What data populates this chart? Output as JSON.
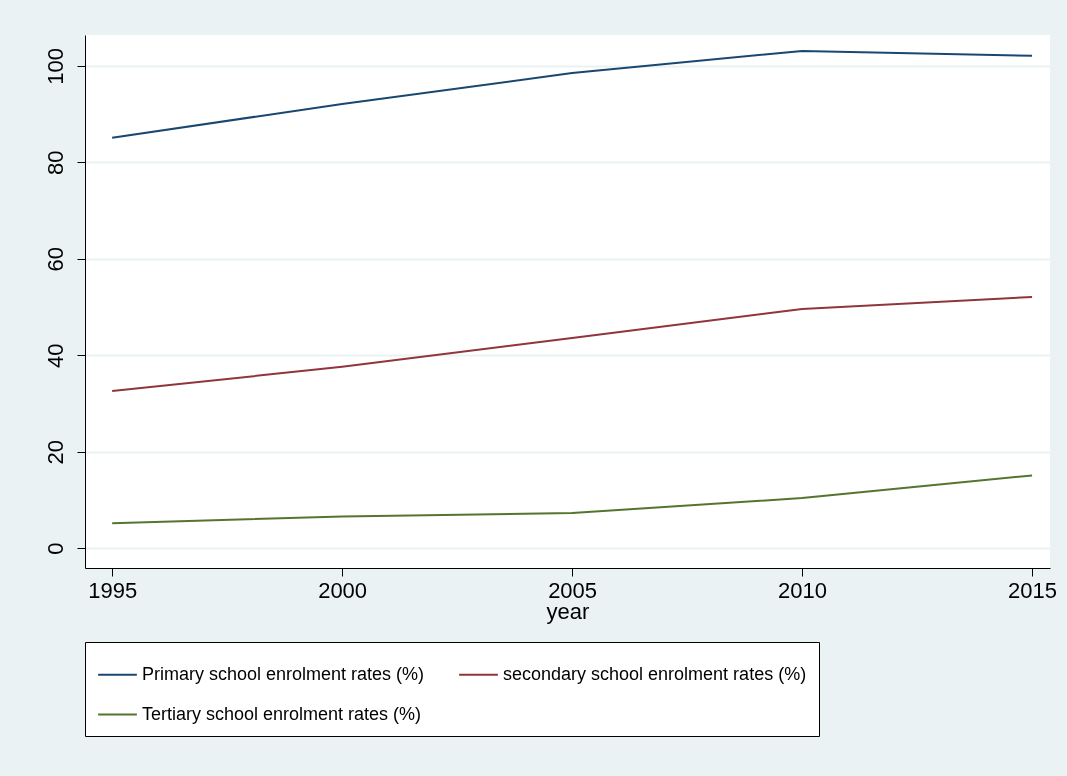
{
  "chart_data": {
    "type": "line",
    "xlabel": "year",
    "x": [
      1995,
      2000,
      2005,
      2010,
      2015
    ],
    "xlim": [
      1994.41,
      2015.39
    ],
    "xticks": [
      1995,
      2000,
      2005,
      2010,
      2015
    ],
    "ylim": [
      -4.1,
      106.4
    ],
    "yticks": [
      0,
      20,
      40,
      60,
      80,
      100
    ],
    "grid": "y",
    "legend": "bottom",
    "line_style": "solid",
    "series": [
      {
        "name": "Primary school enrolment rates (%)",
        "color": "#1a476f",
        "values": [
          85.1,
          92.1,
          98.5,
          103.1,
          102.1
        ]
      },
      {
        "name": "secondary school enrolment rates (%)",
        "color": "#90353b",
        "values": [
          32.6,
          37.6,
          43.6,
          49.6,
          52.1
        ]
      },
      {
        "name": "Tertiary school enrolment rates (%)",
        "color": "#55752f",
        "values": [
          5.2,
          6.6,
          7.3,
          10.4,
          15.1
        ]
      }
    ]
  }
}
